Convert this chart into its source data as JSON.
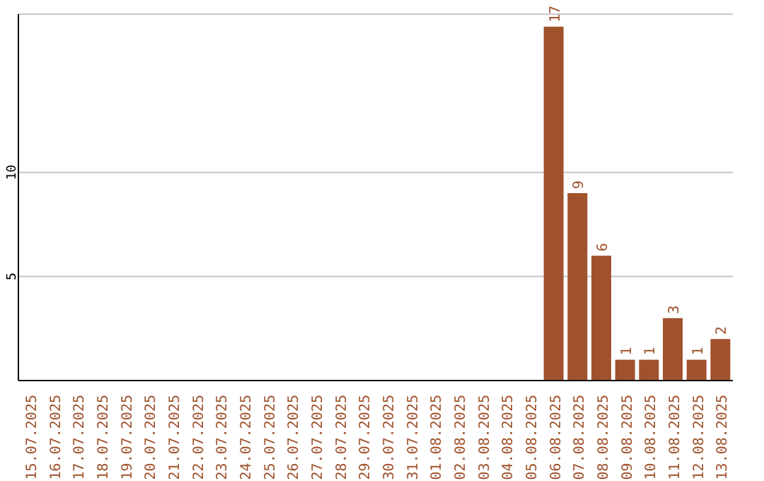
{
  "chart_data": {
    "type": "bar",
    "categories": [
      "15.07.2025",
      "16.07.2025",
      "17.07.2025",
      "18.07.2025",
      "19.07.2025",
      "20.07.2025",
      "21.07.2025",
      "22.07.2025",
      "23.07.2025",
      "24.07.2025",
      "25.07.2025",
      "26.07.2025",
      "27.07.2025",
      "28.07.2025",
      "29.07.2025",
      "30.07.2025",
      "31.07.2025",
      "01.08.2025",
      "02.08.2025",
      "03.08.2025",
      "04.08.2025",
      "05.08.2025",
      "06.08.2025",
      "07.08.2025",
      "08.08.2025",
      "09.08.2025",
      "10.08.2025",
      "11.08.2025",
      "12.08.2025",
      "13.08.2025"
    ],
    "values": [
      0,
      0,
      0,
      0,
      0,
      0,
      0,
      0,
      0,
      0,
      0,
      0,
      0,
      0,
      0,
      0,
      0,
      0,
      0,
      0,
      0,
      0,
      17,
      9,
      6,
      1,
      1,
      3,
      1,
      2
    ],
    "value_labels": [
      null,
      null,
      null,
      null,
      null,
      null,
      null,
      null,
      null,
      null,
      null,
      null,
      null,
      null,
      null,
      null,
      null,
      null,
      null,
      null,
      null,
      null,
      "17",
      "9",
      "6",
      "1",
      "1",
      "3",
      "1",
      "2"
    ],
    "color": "#a0522d",
    "ylim": [
      0,
      17.6
    ],
    "yticks": [
      5,
      10
    ],
    "grid": "y"
  }
}
